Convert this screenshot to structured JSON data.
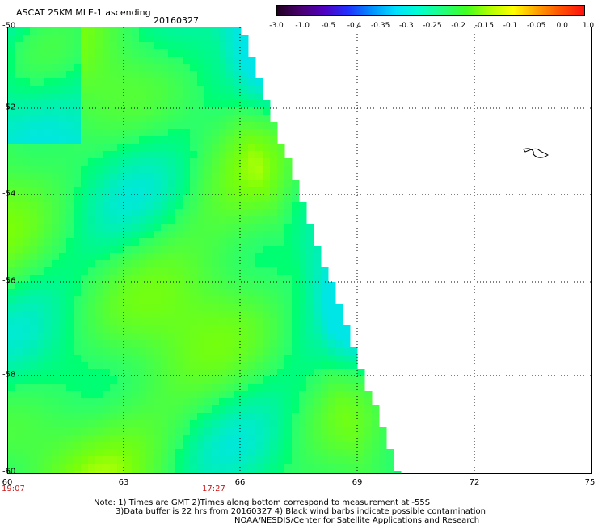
{
  "header": {
    "title": "ASCAT 25KM MLE-1 ascending",
    "date": "20160327"
  },
  "colorbar": {
    "colors": [
      "#200020",
      "#4a0070",
      "#5000c0",
      "#2030ff",
      "#0090ff",
      "#00e0ff",
      "#00ffd0",
      "#20ff80",
      "#40ff20",
      "#b0ff00",
      "#ffff00",
      "#ffa000",
      "#ff5000",
      "#ff1010"
    ],
    "ticks": [
      "-3.0",
      "-1.0",
      "-0.5",
      "-0.4",
      "-0.35",
      "-0.3",
      "-0.25",
      "-0.2",
      "-0.15",
      "-0.1",
      "-0.05",
      "0.0",
      "1.0"
    ]
  },
  "map": {
    "x_ticks": [
      "60",
      "63",
      "66",
      "69",
      "72",
      "75"
    ],
    "y_ticks": [
      "-50",
      "-52",
      "-54",
      "-56",
      "-58",
      "-60"
    ],
    "lon_range": [
      60,
      75
    ],
    "lat_range": [
      -50,
      -60
    ],
    "times": [
      {
        "label": "19:07",
        "lon": 60
      },
      {
        "label": "17:27",
        "lon": 65
      }
    ]
  },
  "notes": {
    "line1": "Note: 1) Times are GMT 2)Times along bottom correspond to measurement at -55S",
    "line2": "3)Data buffer is 22 hrs from 20160327 4) Black wind barbs indicate possible contamination",
    "line3": "NOAA/NESDIS/Center for Satellite Applications and Research"
  }
}
